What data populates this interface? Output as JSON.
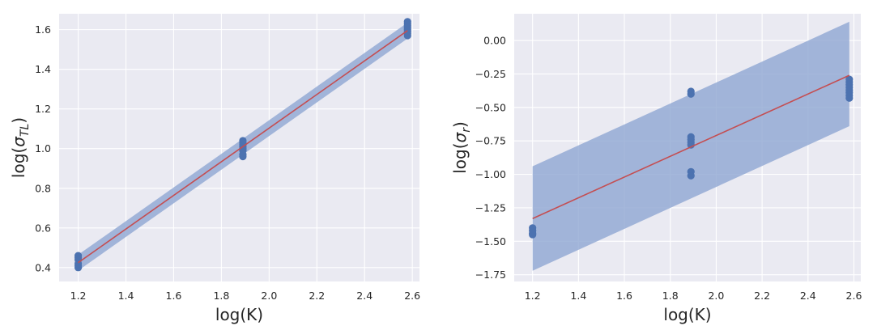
{
  "chart_data": [
    {
      "type": "scatter",
      "title": "",
      "xlabel": "log(K)",
      "ylabel_parts": [
        "log(",
        "σ",
        "TL",
        ")"
      ],
      "xlim": [
        1.12,
        2.63
      ],
      "ylim": [
        0.33,
        1.68
      ],
      "xticks": [
        1.2,
        1.4,
        1.6,
        1.8,
        2.0,
        2.2,
        2.4,
        2.6
      ],
      "xtick_labels": [
        "1.2",
        "1.4",
        "1.6",
        "1.8",
        "2.0",
        "2.2",
        "2.4",
        "2.6"
      ],
      "yticks": [
        0.4,
        0.6,
        0.8,
        1.0,
        1.2,
        1.4,
        1.6
      ],
      "ytick_labels": [
        "0.4",
        "0.6",
        "0.8",
        "1.0",
        "1.2",
        "1.4",
        "1.6"
      ],
      "grid": true,
      "points": [
        {
          "x": 1.2,
          "y": 0.4
        },
        {
          "x": 1.2,
          "y": 0.41
        },
        {
          "x": 1.2,
          "y": 0.42
        },
        {
          "x": 1.2,
          "y": 0.44
        },
        {
          "x": 1.2,
          "y": 0.45
        },
        {
          "x": 1.2,
          "y": 0.46
        },
        {
          "x": 1.89,
          "y": 0.96
        },
        {
          "x": 1.89,
          "y": 0.97
        },
        {
          "x": 1.89,
          "y": 0.99
        },
        {
          "x": 1.89,
          "y": 1.0
        },
        {
          "x": 1.89,
          "y": 1.01
        },
        {
          "x": 1.89,
          "y": 1.02
        },
        {
          "x": 1.89,
          "y": 1.03
        },
        {
          "x": 1.89,
          "y": 1.04
        },
        {
          "x": 2.58,
          "y": 1.57
        },
        {
          "x": 2.58,
          "y": 1.58
        },
        {
          "x": 2.58,
          "y": 1.59
        },
        {
          "x": 2.58,
          "y": 1.6
        },
        {
          "x": 2.58,
          "y": 1.61
        },
        {
          "x": 2.58,
          "y": 1.62
        },
        {
          "x": 2.58,
          "y": 1.63
        },
        {
          "x": 2.58,
          "y": 1.64
        }
      ],
      "fit_line": [
        {
          "x": 1.2,
          "y": 0.425
        },
        {
          "x": 2.58,
          "y": 1.595
        }
      ],
      "band_lower": [
        {
          "x": 1.2,
          "y": 0.385
        },
        {
          "x": 2.58,
          "y": 1.555
        }
      ],
      "band_upper": [
        {
          "x": 1.2,
          "y": 0.465
        },
        {
          "x": 2.58,
          "y": 1.635
        }
      ]
    },
    {
      "type": "scatter",
      "title": "",
      "xlabel": "log(K)",
      "ylabel_parts": [
        "log(",
        "σ",
        "r",
        ")"
      ],
      "xlim": [
        1.12,
        2.63
      ],
      "ylim": [
        -1.8,
        0.2
      ],
      "xticks": [
        1.2,
        1.4,
        1.6,
        1.8,
        2.0,
        2.2,
        2.4,
        2.6
      ],
      "xtick_labels": [
        "1.2",
        "1.4",
        "1.6",
        "1.8",
        "2.0",
        "2.2",
        "2.4",
        "2.6"
      ],
      "yticks": [
        -1.75,
        -1.5,
        -1.25,
        -1.0,
        -0.75,
        -0.5,
        -0.25,
        0.0
      ],
      "ytick_labels": [
        "−1.75",
        "−1.50",
        "−1.25",
        "−1.00",
        "−0.75",
        "−0.50",
        "−0.25",
        "0.00"
      ],
      "grid": true,
      "points": [
        {
          "x": 1.2,
          "y": -1.4
        },
        {
          "x": 1.2,
          "y": -1.42
        },
        {
          "x": 1.2,
          "y": -1.44
        },
        {
          "x": 1.2,
          "y": -1.45
        },
        {
          "x": 1.89,
          "y": -0.38
        },
        {
          "x": 1.89,
          "y": -0.4
        },
        {
          "x": 1.89,
          "y": -0.72
        },
        {
          "x": 1.89,
          "y": -0.74
        },
        {
          "x": 1.89,
          "y": -0.76
        },
        {
          "x": 1.89,
          "y": -0.78
        },
        {
          "x": 1.89,
          "y": -0.98
        },
        {
          "x": 1.89,
          "y": -1.01
        },
        {
          "x": 2.58,
          "y": -0.29
        },
        {
          "x": 2.58,
          "y": -0.31
        },
        {
          "x": 2.58,
          "y": -0.33
        },
        {
          "x": 2.58,
          "y": -0.35
        },
        {
          "x": 2.58,
          "y": -0.37
        },
        {
          "x": 2.58,
          "y": -0.39
        },
        {
          "x": 2.58,
          "y": -0.41
        },
        {
          "x": 2.58,
          "y": -0.43
        }
      ],
      "fit_line": [
        {
          "x": 1.2,
          "y": -1.33
        },
        {
          "x": 2.58,
          "y": -0.26
        }
      ],
      "band_lower": [
        {
          "x": 1.2,
          "y": -1.72
        },
        {
          "x": 2.58,
          "y": -0.64
        }
      ],
      "band_upper": [
        {
          "x": 1.2,
          "y": -0.94
        },
        {
          "x": 2.58,
          "y": 0.14
        }
      ]
    }
  ],
  "colors": {
    "plot_background": "#eaeaf2",
    "grid": "#ffffff",
    "points": "#4c72b0",
    "fit_line": "#c44e52",
    "band": "#8fa6d2",
    "text": "#262626"
  }
}
